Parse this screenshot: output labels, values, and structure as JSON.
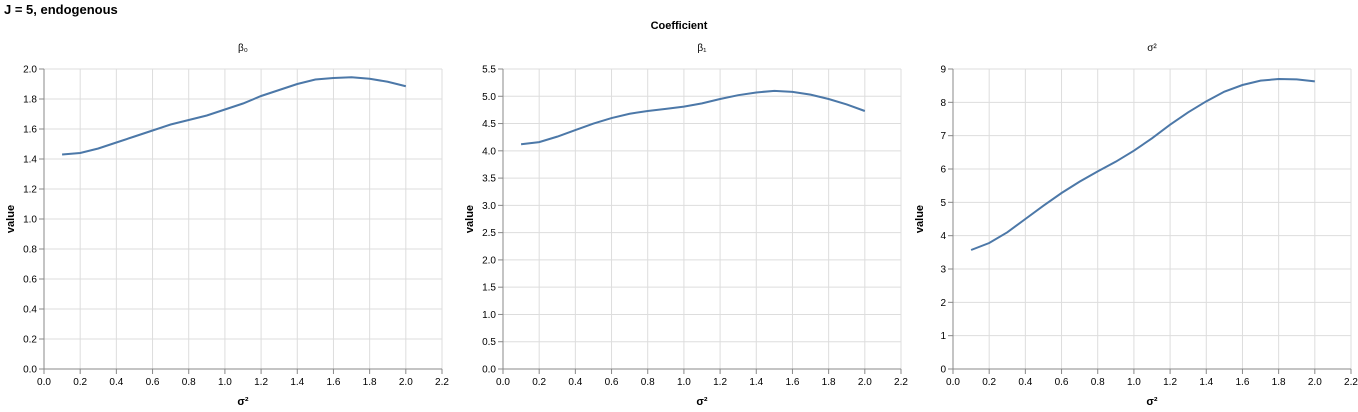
{
  "title": "J = 5, endogenous",
  "facet_header": "Coefficient",
  "chart_data": [
    {
      "type": "line",
      "panel_title": "β₀",
      "xlabel": "σ²",
      "ylabel": "value",
      "xlim": [
        0,
        2.2
      ],
      "ylim": [
        0,
        2.0
      ],
      "xticks": [
        0.0,
        0.2,
        0.4,
        0.6,
        0.8,
        1.0,
        1.2,
        1.4,
        1.6,
        1.8,
        2.0,
        2.2
      ],
      "xtick_labels": [
        "0.0",
        "0.2",
        "0.4",
        "0.6",
        "0.8",
        "1.0",
        "1.2",
        "1.4",
        "1.6",
        "1.8",
        "2.0",
        "2.2"
      ],
      "yticks": [
        0.0,
        0.2,
        0.4,
        0.6,
        0.8,
        1.0,
        1.2,
        1.4,
        1.6,
        1.8,
        2.0
      ],
      "ytick_labels": [
        "0.0",
        "0.2",
        "0.4",
        "0.6",
        "0.8",
        "1.0",
        "1.2",
        "1.4",
        "1.6",
        "1.8",
        "2.0"
      ],
      "grid": true,
      "x": [
        0.1,
        0.2,
        0.3,
        0.4,
        0.5,
        0.6,
        0.7,
        0.8,
        0.9,
        1.0,
        1.1,
        1.2,
        1.3,
        1.4,
        1.5,
        1.6,
        1.7,
        1.8,
        1.9,
        2.0
      ],
      "y": [
        1.43,
        1.44,
        1.47,
        1.51,
        1.55,
        1.59,
        1.63,
        1.66,
        1.69,
        1.73,
        1.77,
        1.82,
        1.86,
        1.9,
        1.93,
        1.94,
        1.945,
        1.935,
        1.915,
        1.885
      ]
    },
    {
      "type": "line",
      "panel_title": "β₁",
      "xlabel": "σ²",
      "ylabel": "value",
      "xlim": [
        0,
        2.2
      ],
      "ylim": [
        0,
        5.5
      ],
      "xticks": [
        0.0,
        0.2,
        0.4,
        0.6,
        0.8,
        1.0,
        1.2,
        1.4,
        1.6,
        1.8,
        2.0,
        2.2
      ],
      "xtick_labels": [
        "0.0",
        "0.2",
        "0.4",
        "0.6",
        "0.8",
        "1.0",
        "1.2",
        "1.4",
        "1.6",
        "1.8",
        "2.0",
        "2.2"
      ],
      "yticks": [
        0.0,
        0.5,
        1.0,
        1.5,
        2.0,
        2.5,
        3.0,
        3.5,
        4.0,
        4.5,
        5.0,
        5.5
      ],
      "ytick_labels": [
        "0.0",
        "0.5",
        "1.0",
        "1.5",
        "2.0",
        "2.5",
        "3.0",
        "3.5",
        "4.0",
        "4.5",
        "5.0",
        "5.5"
      ],
      "grid": true,
      "x": [
        0.1,
        0.2,
        0.3,
        0.4,
        0.5,
        0.6,
        0.7,
        0.8,
        0.9,
        1.0,
        1.1,
        1.2,
        1.3,
        1.4,
        1.5,
        1.6,
        1.7,
        1.8,
        1.9,
        2.0
      ],
      "y": [
        4.12,
        4.16,
        4.26,
        4.38,
        4.5,
        4.6,
        4.68,
        4.73,
        4.77,
        4.81,
        4.87,
        4.95,
        5.02,
        5.07,
        5.1,
        5.08,
        5.03,
        4.95,
        4.85,
        4.73
      ]
    },
    {
      "type": "line",
      "panel_title": "σ²",
      "xlabel": "σ²",
      "ylabel": "value",
      "xlim": [
        0,
        2.2
      ],
      "ylim": [
        0,
        9
      ],
      "xticks": [
        0.0,
        0.2,
        0.4,
        0.6,
        0.8,
        1.0,
        1.2,
        1.4,
        1.6,
        1.8,
        2.0,
        2.2
      ],
      "xtick_labels": [
        "0.0",
        "0.2",
        "0.4",
        "0.6",
        "0.8",
        "1.0",
        "1.2",
        "1.4",
        "1.6",
        "1.8",
        "2.0",
        "2.2"
      ],
      "yticks": [
        0,
        1,
        2,
        3,
        4,
        5,
        6,
        7,
        8,
        9
      ],
      "ytick_labels": [
        "0",
        "1",
        "2",
        "3",
        "4",
        "5",
        "6",
        "7",
        "8",
        "9"
      ],
      "grid": true,
      "x": [
        0.1,
        0.2,
        0.3,
        0.4,
        0.5,
        0.6,
        0.7,
        0.8,
        0.9,
        1.0,
        1.1,
        1.2,
        1.3,
        1.4,
        1.5,
        1.6,
        1.7,
        1.8,
        1.9,
        2.0
      ],
      "y": [
        3.57,
        3.78,
        4.1,
        4.5,
        4.9,
        5.28,
        5.62,
        5.93,
        6.22,
        6.55,
        6.92,
        7.33,
        7.7,
        8.03,
        8.32,
        8.52,
        8.65,
        8.7,
        8.69,
        8.63
      ]
    }
  ]
}
